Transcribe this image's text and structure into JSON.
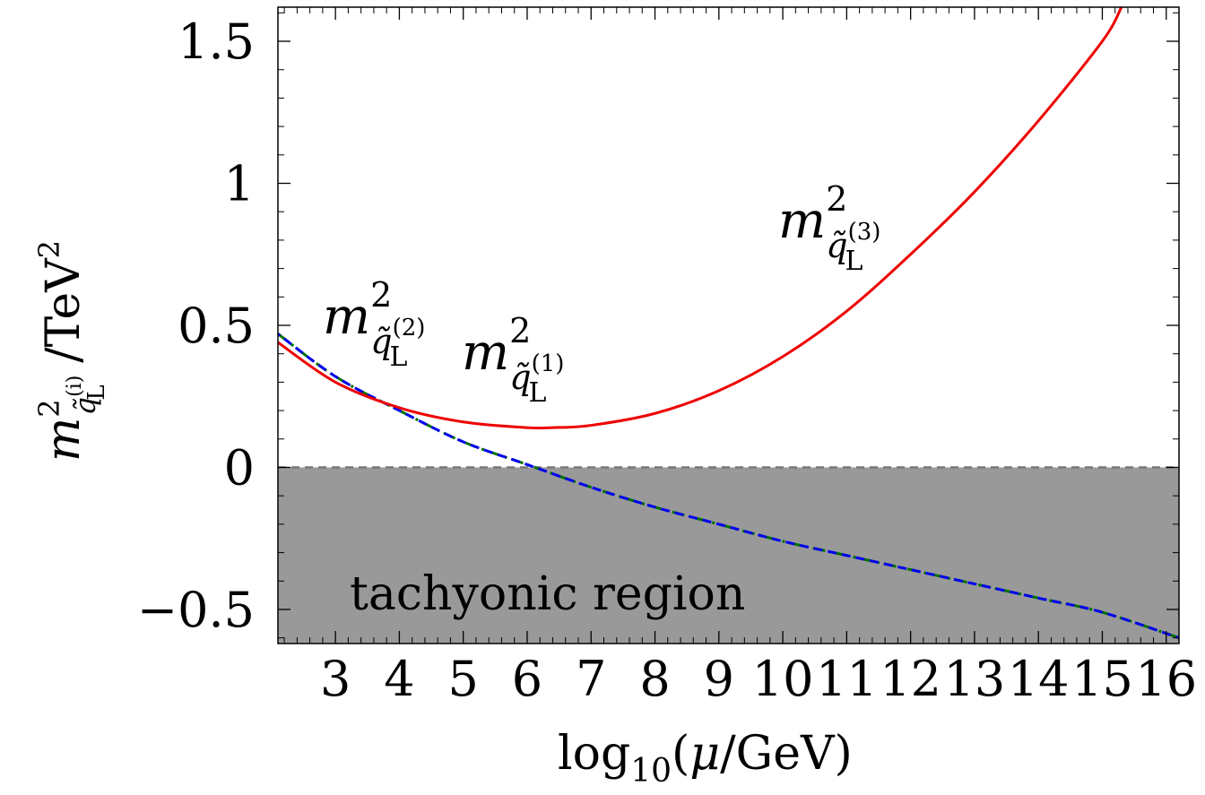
{
  "chart_data": {
    "type": "line",
    "xlabel": {
      "pre": "log",
      "sub": "10",
      "post": "(",
      "mu": "μ",
      "tail": "/GeV)"
    },
    "ylabel": {
      "m": "m",
      "sup": "2",
      "q": "q̃",
      "sub_sup": "(i)",
      "sub_sub": "L",
      "tail": " /TeV",
      "tail_sup": "2"
    },
    "xlim": [
      2.1,
      16.2
    ],
    "ylim": [
      -0.62,
      1.62
    ],
    "xticks": [
      "3",
      "4",
      "5",
      "6",
      "7",
      "8",
      "9",
      "10",
      "11",
      "12",
      "13",
      "14",
      "15",
      "16"
    ],
    "yticks": [
      "-0.5",
      "0",
      "0.5",
      "1",
      "1.5"
    ],
    "grid": false,
    "shaded_region": {
      "label": "tachyonic region",
      "y_from": -0.62,
      "y_to": 0,
      "color": "#999999"
    },
    "reference_line": {
      "y": 0,
      "style": "dashed",
      "color": "#777777"
    },
    "series": [
      {
        "color": "#ee0000",
        "style": "solid",
        "label": {
          "m": "m",
          "sup": "2",
          "q": "q̃",
          "gen": "(3)",
          "sub": "L"
        },
        "x": [
          2.1,
          3,
          4,
          5,
          6,
          6.4,
          7,
          8,
          9,
          10,
          11,
          12,
          13,
          14,
          15,
          15.3
        ],
        "y": [
          0.44,
          0.3,
          0.21,
          0.16,
          0.14,
          0.14,
          0.148,
          0.19,
          0.27,
          0.39,
          0.55,
          0.75,
          0.97,
          1.22,
          1.5,
          1.62
        ]
      },
      {
        "color": "#007000",
        "style": "dashdot",
        "label": {
          "m": "m",
          "sup": "2",
          "q": "q̃",
          "gen": "(2)",
          "sub": "L"
        },
        "x": [
          2.1,
          3,
          4,
          5,
          6,
          7,
          8,
          9,
          10,
          11,
          12,
          13,
          14,
          15,
          16.2
        ],
        "y": [
          0.47,
          0.32,
          0.2,
          0.09,
          0.01,
          -0.07,
          -0.14,
          -0.2,
          -0.26,
          -0.31,
          -0.36,
          -0.41,
          -0.46,
          -0.51,
          -0.6
        ]
      },
      {
        "color": "#0000ee",
        "style": "dashed",
        "label": {
          "m": "m",
          "sup": "2",
          "q": "q̃",
          "gen": "(1)",
          "sub": "L"
        },
        "x": [
          2.1,
          3,
          4,
          5,
          6,
          7,
          8,
          9,
          10,
          11,
          12,
          13,
          14,
          15,
          16.2
        ],
        "y": [
          0.47,
          0.32,
          0.2,
          0.09,
          0.01,
          -0.07,
          -0.14,
          -0.2,
          -0.26,
          -0.31,
          -0.36,
          -0.41,
          -0.46,
          -0.51,
          -0.6
        ]
      }
    ]
  }
}
